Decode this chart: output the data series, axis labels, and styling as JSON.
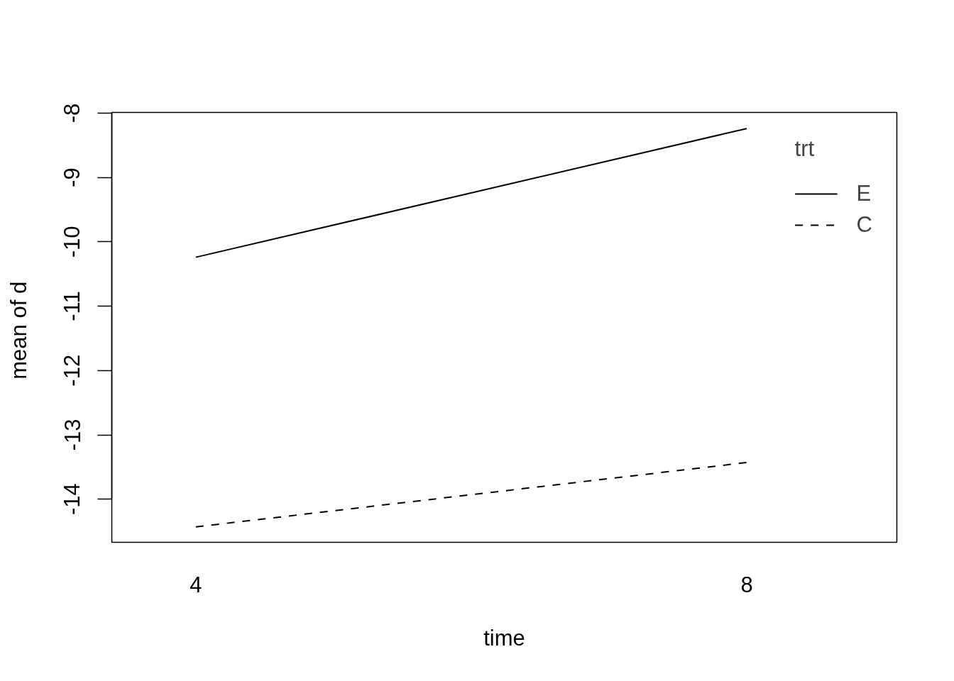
{
  "chart_data": {
    "type": "line",
    "xlabel": "time",
    "ylabel": "mean of  d",
    "legend_title": "trt",
    "x": [
      4,
      8
    ],
    "xlim": [
      3.39,
      9.09
    ],
    "xticks": [
      4,
      8
    ],
    "series": [
      {
        "name": "E",
        "color": "#000000",
        "line_style": "solid",
        "values": [
          -10.24,
          -8.24
        ]
      },
      {
        "name": "C",
        "color": "#000000",
        "line_style": "dashed",
        "values": [
          -14.43,
          -13.43
        ]
      }
    ],
    "ylim": [
      -14.67,
      -7.99
    ],
    "yticks": [
      -14,
      -13,
      -12,
      -11,
      -10,
      -9,
      -8
    ],
    "legend": "top right",
    "grid": false
  }
}
